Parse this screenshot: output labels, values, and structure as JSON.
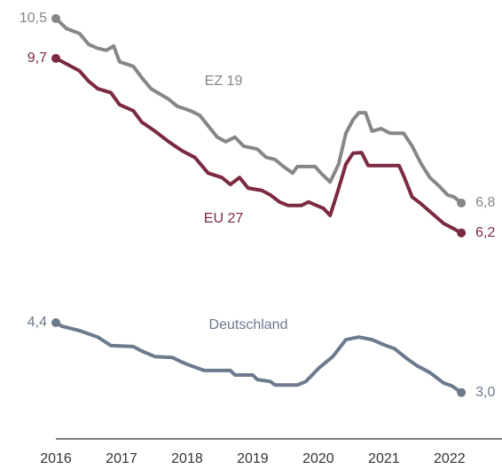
{
  "chart_data": {
    "type": "line",
    "xlim": [
      2016,
      2022.8
    ],
    "xticks": [
      2016,
      2017,
      2018,
      2019,
      2020,
      2021,
      2022
    ],
    "ylim": [
      2.07,
      10.87
    ],
    "series": [
      {
        "name": "EZ 19",
        "color": "#878787",
        "x": [
          2016.0,
          2016.16,
          2016.36,
          2016.5,
          2016.64,
          2016.77,
          2016.88,
          2016.97,
          2017.18,
          2017.31,
          2017.45,
          2017.72,
          2017.85,
          2018.05,
          2018.19,
          2018.32,
          2018.46,
          2018.59,
          2018.73,
          2018.86,
          2019.07,
          2019.2,
          2019.34,
          2019.47,
          2019.61,
          2019.68,
          2019.95,
          2020.04,
          2020.18,
          2020.31,
          2020.42,
          2020.53,
          2020.62,
          2020.72,
          2020.82,
          2020.96,
          2021.09,
          2021.3,
          2021.43,
          2021.57,
          2021.7,
          2021.84,
          2021.97,
          2022.07,
          2022.18
        ],
        "values": [
          10.5,
          10.3,
          10.2,
          9.98,
          9.9,
          9.86,
          9.95,
          9.63,
          9.54,
          9.31,
          9.09,
          8.88,
          8.74,
          8.65,
          8.56,
          8.35,
          8.12,
          8.03,
          8.12,
          7.94,
          7.88,
          7.72,
          7.67,
          7.53,
          7.4,
          7.53,
          7.53,
          7.4,
          7.22,
          7.58,
          8.2,
          8.47,
          8.61,
          8.61,
          8.24,
          8.29,
          8.2,
          8.2,
          7.94,
          7.58,
          7.31,
          7.14,
          6.96,
          6.92,
          6.8
        ],
        "value_labels": [
          "10,5",
          null,
          null,
          null,
          null,
          null,
          null,
          null,
          null,
          null,
          null,
          null,
          null,
          null,
          null,
          null,
          null,
          null,
          null,
          null,
          null,
          null,
          null,
          null,
          null,
          null,
          null,
          null,
          null,
          null,
          null,
          null,
          null,
          null,
          null,
          null,
          null,
          null,
          null,
          null,
          null,
          null,
          null,
          null,
          "6,8"
        ]
      },
      {
        "name": "EU 27",
        "color": "#7b2a40",
        "x": [
          2016.0,
          2016.16,
          2016.36,
          2016.5,
          2016.64,
          2016.84,
          2016.97,
          2017.18,
          2017.31,
          2017.51,
          2017.72,
          2017.92,
          2018.12,
          2018.32,
          2018.53,
          2018.66,
          2018.8,
          2018.93,
          2019.14,
          2019.27,
          2019.41,
          2019.54,
          2019.74,
          2019.85,
          2020.08,
          2020.18,
          2020.28,
          2020.42,
          2020.53,
          2020.66,
          2020.76,
          2021.23,
          2021.3,
          2021.43,
          2021.57,
          2021.77,
          2021.91,
          2022.07,
          2022.18
        ],
        "values": [
          9.7,
          9.59,
          9.45,
          9.24,
          9.09,
          9.01,
          8.77,
          8.65,
          8.42,
          8.24,
          8.03,
          7.85,
          7.71,
          7.4,
          7.31,
          7.17,
          7.31,
          7.1,
          7.05,
          6.96,
          6.82,
          6.75,
          6.75,
          6.82,
          6.69,
          6.55,
          6.96,
          7.58,
          7.8,
          7.81,
          7.55,
          7.55,
          7.35,
          6.92,
          6.78,
          6.55,
          6.39,
          6.28,
          6.2
        ],
        "value_labels": [
          "9,7",
          null,
          null,
          null,
          null,
          null,
          null,
          null,
          null,
          null,
          null,
          null,
          null,
          null,
          null,
          null,
          null,
          null,
          null,
          null,
          null,
          null,
          null,
          null,
          null,
          null,
          null,
          null,
          null,
          null,
          null,
          null,
          null,
          null,
          null,
          null,
          null,
          null,
          "6,2"
        ]
      },
      {
        "name": "Deutschland",
        "color": "#6c7a8e",
        "x": [
          2016.0,
          2016.09,
          2016.36,
          2016.64,
          2016.84,
          2017.18,
          2017.31,
          2017.51,
          2017.78,
          2017.92,
          2018.05,
          2018.26,
          2018.66,
          2018.73,
          2019.0,
          2019.07,
          2019.27,
          2019.34,
          2019.68,
          2019.81,
          2020.01,
          2020.22,
          2020.42,
          2020.62,
          2020.82,
          2021.03,
          2021.16,
          2021.36,
          2021.5,
          2021.7,
          2021.91,
          2022.04,
          2022.18
        ],
        "values": [
          4.4,
          4.33,
          4.24,
          4.11,
          3.94,
          3.92,
          3.83,
          3.72,
          3.7,
          3.61,
          3.54,
          3.44,
          3.44,
          3.35,
          3.35,
          3.26,
          3.22,
          3.15,
          3.15,
          3.22,
          3.49,
          3.72,
          4.06,
          4.11,
          4.06,
          3.94,
          3.88,
          3.67,
          3.54,
          3.4,
          3.19,
          3.13,
          3.0
        ],
        "value_labels": [
          "4,4",
          null,
          null,
          null,
          null,
          null,
          null,
          null,
          null,
          null,
          null,
          null,
          null,
          null,
          null,
          null,
          null,
          null,
          null,
          null,
          null,
          null,
          null,
          null,
          null,
          null,
          null,
          null,
          null,
          null,
          null,
          null,
          "3,0"
        ]
      }
    ]
  }
}
